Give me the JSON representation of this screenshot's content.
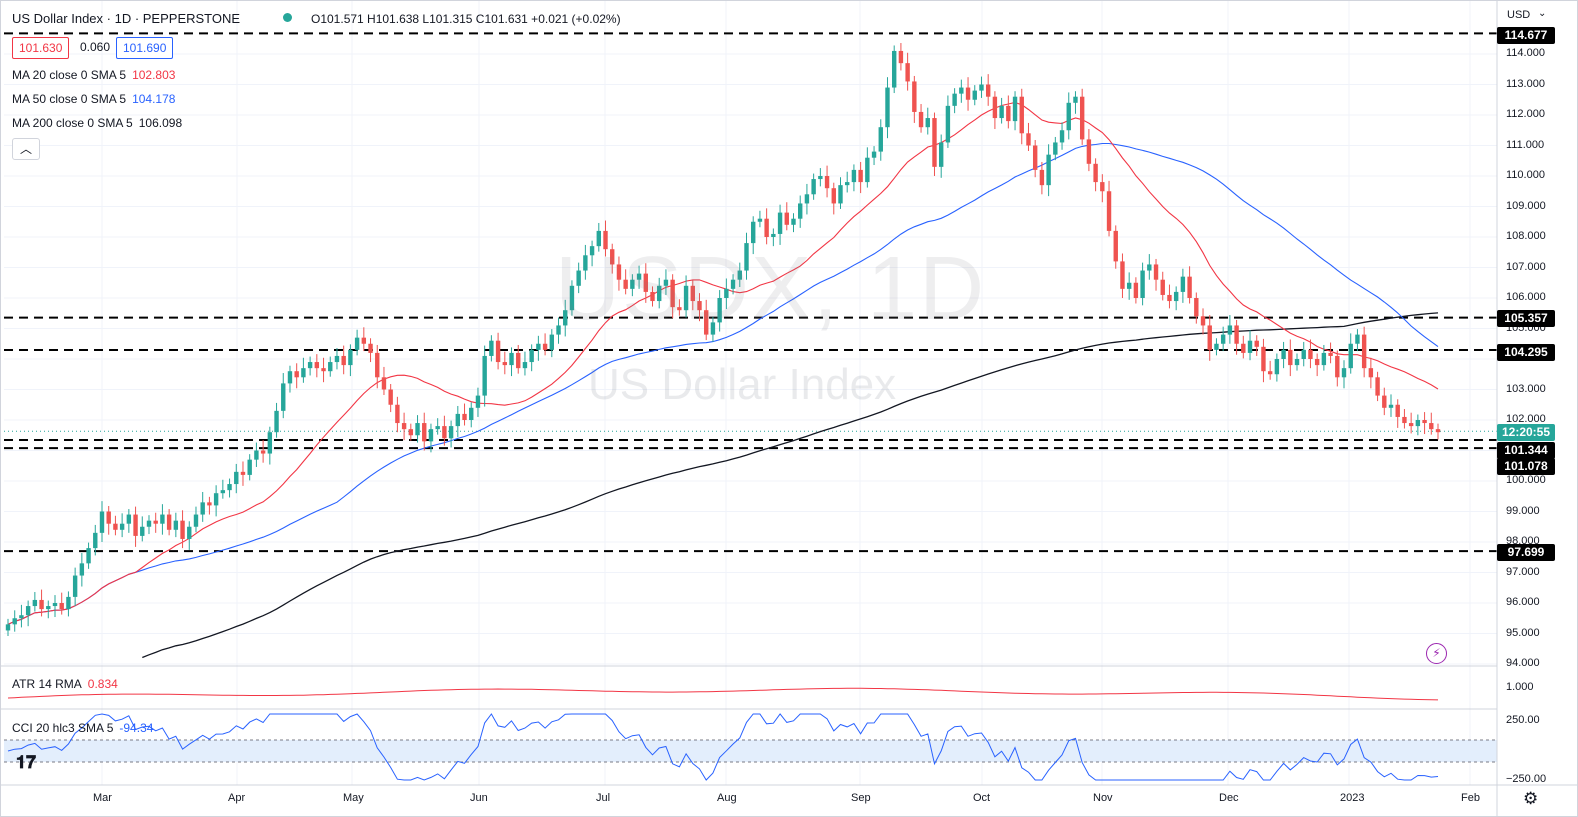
{
  "header": {
    "title": "US Dollar Index · 1D · PEPPERSTONE",
    "ohlc": "O101.571 H101.638 L101.315 C101.631 +0.021 (+0.02%)",
    "bid": "101.630",
    "spread": "0.060",
    "ask": "101.690",
    "currency": "USD"
  },
  "legend": {
    "ma20_label": "MA 20 close 0 SMA 5",
    "ma20_value": "102.803",
    "ma50_label": "MA 50 close 0 SMA 5",
    "ma50_value": "104.178",
    "ma200_label": "MA 200 close 0 SMA 5",
    "ma200_value": "106.098",
    "atr_label": "ATR 14 RMA",
    "atr_value": "0.834",
    "cci_label": "CCI 20 hlc3 SMA 5",
    "cci_value": "-94.34"
  },
  "watermark": {
    "symbol": "USDX, 1D",
    "name": "US Dollar Index"
  },
  "tags": {
    "top": "114.677",
    "r1": "105.357",
    "r2": "104.295",
    "countdown": "12:20:55",
    "s1": "101.344",
    "s2": "101.078",
    "bottom": "97.699"
  },
  "colors": {
    "up": "#26a69a",
    "down": "#ef5350",
    "ma20": "#f23645",
    "ma50": "#2962ff",
    "ma200": "#131722",
    "cci": "#2962ff",
    "atr": "#f23645",
    "band": "#e3eefc"
  },
  "chart_data": {
    "type": "line",
    "price_axis": {
      "ticks": [
        "94.000",
        "95.000",
        "96.000",
        "97.000",
        "98.000",
        "99.000",
        "100.000",
        "101.000",
        "102.000",
        "103.000",
        "104.000",
        "105.000",
        "106.000",
        "107.000",
        "108.000",
        "109.000",
        "110.000",
        "111.000",
        "112.000",
        "113.000",
        "114.000"
      ],
      "range": [
        93.8,
        115.0
      ]
    },
    "time_axis": [
      "Mar",
      "Apr",
      "May",
      "Jun",
      "Jul",
      "Aug",
      "Sep",
      "Oct",
      "Nov",
      "Dec",
      "2023",
      "Feb"
    ],
    "horizontal_levels": [
      114.677,
      105.357,
      104.295,
      101.344,
      101.078,
      97.699
    ],
    "last_price": 101.631,
    "closes": [
      95.3,
      95.5,
      95.6,
      95.9,
      96.1,
      95.8,
      95.9,
      96.0,
      95.8,
      96.2,
      96.9,
      97.3,
      97.8,
      98.3,
      99.0,
      98.6,
      98.4,
      98.6,
      98.9,
      98.2,
      98.5,
      98.7,
      98.6,
      98.9,
      98.4,
      98.7,
      98.1,
      98.5,
      98.9,
      99.3,
      99.2,
      99.6,
      99.7,
      99.9,
      100.3,
      100.2,
      100.7,
      101.0,
      100.9,
      101.6,
      102.3,
      103.2,
      103.6,
      103.4,
      103.7,
      103.9,
      103.7,
      103.6,
      103.9,
      104.1,
      103.8,
      104.3,
      104.7,
      104.5,
      104.2,
      103.4,
      103.0,
      102.5,
      101.9,
      101.7,
      101.5,
      101.9,
      101.3,
      101.7,
      101.8,
      101.4,
      101.8,
      102.2,
      102.0,
      102.4,
      102.8,
      104.1,
      104.6,
      103.9,
      103.8,
      104.2,
      103.7,
      103.9,
      104.3,
      104.5,
      104.3,
      104.8,
      105.1,
      105.6,
      106.4,
      106.9,
      107.4,
      107.7,
      108.2,
      107.6,
      107.1,
      106.6,
      106.3,
      106.6,
      106.8,
      106.2,
      105.9,
      106.4,
      106.6,
      105.7,
      105.6,
      106.4,
      105.9,
      105.6,
      104.8,
      105.2,
      106.0,
      106.3,
      106.6,
      106.9,
      107.8,
      108.5,
      108.6,
      108.0,
      108.1,
      108.8,
      108.4,
      108.6,
      109.1,
      109.4,
      109.9,
      110.0,
      109.6,
      109.1,
      109.7,
      109.8,
      110.2,
      109.8,
      110.6,
      110.8,
      111.6,
      112.9,
      114.1,
      113.7,
      113.1,
      112.1,
      111.6,
      111.9,
      110.3,
      111.1,
      112.3,
      112.7,
      112.9,
      112.5,
      112.8,
      113.0,
      112.6,
      111.9,
      112.3,
      111.8,
      112.6,
      111.4,
      111.0,
      110.2,
      109.7,
      110.7,
      111.1,
      111.5,
      112.4,
      112.6,
      111.2,
      110.4,
      109.8,
      109.5,
      108.2,
      107.2,
      106.3,
      106.5,
      106.0,
      106.9,
      107.1,
      106.6,
      106.1,
      105.9,
      106.2,
      106.7,
      106.0,
      105.4,
      105.1,
      104.3,
      104.5,
      104.8,
      105.1,
      104.5,
      104.2,
      104.6,
      104.4,
      103.6,
      103.5,
      104.0,
      104.3,
      103.8,
      104.0,
      104.3,
      104.0,
      103.8,
      104.2,
      104.1,
      103.4,
      103.7,
      104.5,
      104.8,
      103.7,
      103.4,
      102.8,
      102.4,
      102.5,
      102.1,
      101.9,
      101.8,
      102.0,
      101.9,
      101.7,
      101.6
    ]
  }
}
